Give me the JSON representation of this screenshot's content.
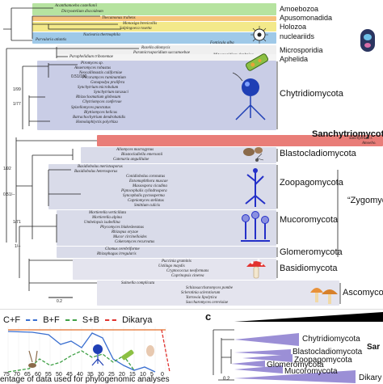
{
  "top_tree": {
    "bands": [
      {
        "taxa": "Acanthamoeba castellanii",
        "group": "Amoebozoa",
        "color": "#b6e3a0"
      },
      {
        "taxa": "Dictyostelium discoideum",
        "group": "",
        "color": "#b6e3a0"
      },
      {
        "taxa": "Thecamonas trahens",
        "group": "Apusomonadida",
        "color": "#f5c27a"
      },
      {
        "taxa": "Monosiga brevicollis",
        "group": "Holozoa",
        "color": "#f3e98a"
      },
      {
        "taxa": "Salpingoeca rosetta",
        "group": "",
        "color": "#f3e98a"
      },
      {
        "taxa": "Nuclearia thermophila",
        "group": "nucleariids",
        "color": "#9fc9e8"
      },
      {
        "taxa": "Parvularia atlantis",
        "group": "",
        "color": "#9fc9e8"
      }
    ],
    "fonticula": "Fonticula alba",
    "micro_taxa": [
      "Rozella allomycis",
      "Paramicrosporidium saccamoebae"
    ],
    "micro_label": "Microsporidia",
    "mitosporidium": "Mitosporidium daphniae",
    "aphelida_taxon": "Paraphelidium tribonemae",
    "aphelida_label": "Aphelida",
    "chytrid_taxa": [
      "Piromyces sp.",
      "Anaeromyces robustus",
      "Neocallimastix californiae",
      "Pecoramyces ruminantium",
      "Gonapodya prolifera",
      "Synchytrium microbalum",
      "Synchytrium taraxaci",
      "Rhizoclosmatium globosum",
      "Chytriomyces confervae",
      "Spizellomyces punctatus",
      "Blyttiomyces helicus",
      "Batrachochytrium dendrobatidis",
      "Homolaphlyctis polyrhiza"
    ],
    "chytrid_label": "Chytridiomycota",
    "sanchy_label": "Sanchytriomycota",
    "sanchy_taxa": [
      "Sanchytrium t.",
      "Amoebo."
    ],
    "blasto_taxa": [
      "Allomyces macrogynus",
      "Blastocladiella emersonii",
      "Catenaria anguillulae"
    ],
    "blasto_label": "Blastocladiomycota",
    "zoopago_taxa": [
      "Basidiobolus meristosporus",
      "Basidiobolus heterosporus",
      "Conidiobolus coronatus",
      "Entomophthora muscae",
      "Massospora cicadina",
      "Piptocephalis cylindrospora",
      "Syncephalis pycnosperma",
      "Capniomyces stellatus",
      "Smittium culicis"
    ],
    "zoopago_label": "Zoopagomycota",
    "zygo_label": "“Zygomyc",
    "mucoro_taxa": [
      "Mortierella verticillata",
      "Mortierella alpina",
      "Umbelopsis isabellina",
      "Phycomyces blakesleeanus",
      "Rhizopus oryzae",
      "Mucor circinelloides",
      "Cokeromyces recurvatus"
    ],
    "mucoro_label": "Mucoromycota",
    "glomero_taxa": [
      "Glomus cerebriforme",
      "Rhizophagus irregularis"
    ],
    "glomero_label": "Glomeromycota",
    "basidio_taxa": [
      "Puccinia graminis",
      "Ustilago maydis",
      "Cryptococcus neoformans",
      "Coprinopsis cinerea"
    ],
    "basidio_label": "Basidiomycota",
    "asco_taxa": [
      "Saitoella complicata",
      "Schizosaccharomyces pombe",
      "Sclerotinia sclerotiorum",
      "Yarrowia lipolytica",
      "Saccharomyces cerevisiae"
    ],
    "asco_label": "Ascomycota",
    "supports": [
      "1/99",
      "0.51/100",
      "1/77",
      "1/92",
      "0.51/--",
      "1/71",
      "1/--"
    ],
    "scale": "0.2"
  },
  "bottom_left": {
    "legend": [
      {
        "label": "C+F",
        "color": "#3a6fd0"
      },
      {
        "label": "B+F",
        "color": "#3fa046"
      },
      {
        "label": "S+B",
        "color": "#e0332f"
      },
      {
        "label": "Dikarya",
        "color": "#e36f2a"
      }
    ],
    "xticks": [
      "75",
      "70",
      "65",
      "60",
      "55",
      "50",
      "45",
      "40",
      "35",
      "30",
      "25",
      "20",
      "15",
      "10",
      "5",
      "0"
    ],
    "xlabel": "entage of data used for phylogenomic analyses"
  },
  "bottom_right": {
    "panel_label": "c",
    "clades": [
      "Chytridiomycota",
      "Blastocladiomycota",
      "Zoopagomycota",
      "Glomeromycota",
      "Mucoromycota",
      "Dikary"
    ],
    "sar_label": "Sar",
    "scale": "0.2"
  },
  "colors": {
    "chytrid_band": "#c9cde6",
    "sanchy_band": "#e97d78",
    "zygo_band": "#d9dbe9",
    "wedge": "#9b8fd6"
  }
}
